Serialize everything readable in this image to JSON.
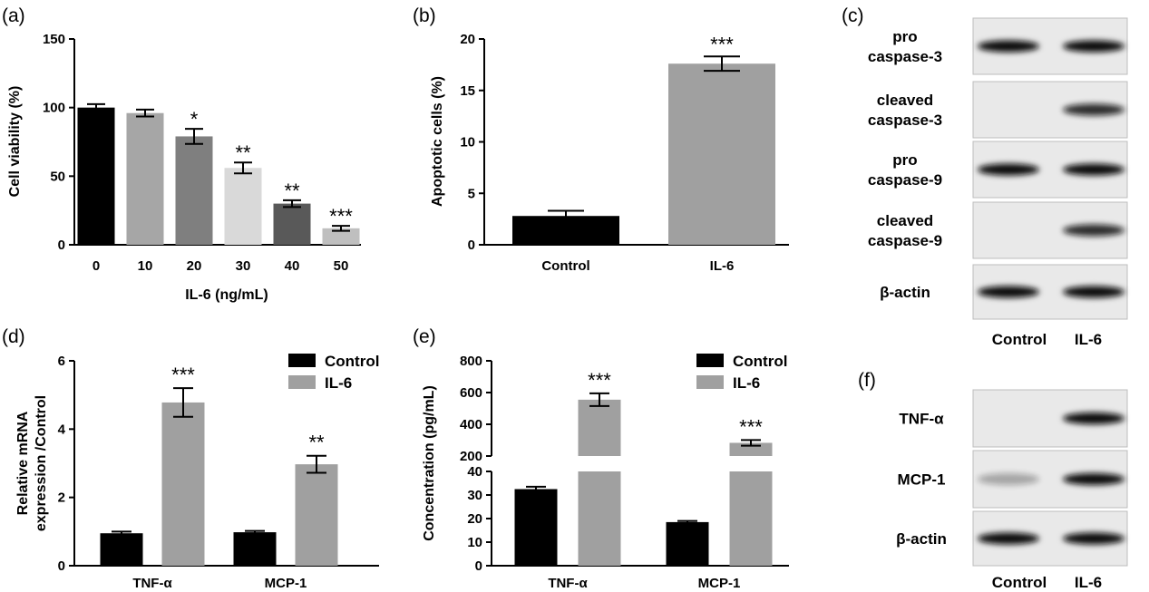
{
  "colors": {
    "black": "#000000",
    "gray_10": "#a6a6a6",
    "gray_20": "#7f7f7f",
    "gray_30": "#d9d9d9",
    "gray_40": "#595959",
    "gray_50": "#bfbfbf",
    "il6_gray": "#a0a0a0"
  },
  "chart_data": [
    {
      "id": "a",
      "panel_label": "(a)",
      "type": "bar",
      "categories": [
        "0",
        "10",
        "20",
        "30",
        "40",
        "50"
      ],
      "values": [
        100,
        96,
        79,
        56,
        30,
        12
      ],
      "errors": [
        2.5,
        2.5,
        5.5,
        4,
        2.5,
        1.8
      ],
      "significance": [
        "",
        "",
        "*",
        "**",
        "**",
        "***"
      ],
      "bar_colors": [
        "#000000",
        "#a6a6a6",
        "#7f7f7f",
        "#d9d9d9",
        "#595959",
        "#bfbfbf"
      ],
      "ylabel": "Cell viability (%)",
      "xlabel": "IL-6 (ng/mL)",
      "ylim": [
        0,
        150
      ],
      "yticks": [
        0,
        50,
        100,
        150
      ]
    },
    {
      "id": "b",
      "panel_label": "(b)",
      "type": "bar",
      "categories": [
        "Control",
        "IL-6"
      ],
      "values": [
        2.8,
        17.6
      ],
      "errors": [
        0.5,
        0.7
      ],
      "significance": [
        "",
        "***"
      ],
      "bar_colors": [
        "#000000",
        "#a0a0a0"
      ],
      "ylabel": "Apoptotic cells (%)",
      "ylim": [
        0,
        20
      ],
      "yticks": [
        0,
        5,
        10,
        15,
        20
      ]
    },
    {
      "id": "d",
      "panel_label": "(d)",
      "type": "bar",
      "categories": [
        "TNF-α",
        "MCP-1"
      ],
      "series": [
        {
          "name": "Control",
          "values": [
            0.95,
            0.98
          ],
          "errors": [
            0.05,
            0.04
          ],
          "significance": [
            "",
            ""
          ]
        },
        {
          "name": "IL-6",
          "values": [
            4.78,
            2.97
          ],
          "errors": [
            0.42,
            0.25
          ],
          "significance": [
            "***",
            "**"
          ]
        }
      ],
      "ylabel": "Relative mRNA expression /Control",
      "ylabel_lines": [
        "Relative mRNA",
        "expression /Control"
      ],
      "ylim": [
        0,
        6
      ],
      "yticks": [
        0,
        2,
        4,
        6
      ],
      "legend_position": "top-right"
    },
    {
      "id": "e",
      "panel_label": "(e)",
      "type": "bar",
      "categories": [
        "TNF-α",
        "MCP-1"
      ],
      "series": [
        {
          "name": "Control",
          "values": [
            32.5,
            18.5
          ],
          "errors": [
            1.0,
            0.5
          ],
          "significance": [
            "",
            ""
          ]
        },
        {
          "name": "IL-6",
          "values": [
            555,
            283
          ],
          "errors": [
            40,
            18
          ],
          "significance": [
            "***",
            "***"
          ]
        }
      ],
      "ylabel": "Concentration (pg/mL)",
      "axis_break": true,
      "ylim_lower": [
        0,
        40
      ],
      "yticks_lower": [
        0,
        10,
        20,
        30,
        40
      ],
      "ylim_upper": [
        200,
        800
      ],
      "yticks_upper": [
        200,
        400,
        600,
        800
      ],
      "legend_position": "top-right"
    }
  ],
  "blot_c": {
    "panel_label": "(c)",
    "rows": [
      {
        "label_lines": [
          "pro",
          "caspase-3"
        ],
        "intensity": [
          1.0,
          1.0
        ]
      },
      {
        "label_lines": [
          "cleaved",
          "caspase-3"
        ],
        "intensity": [
          0.0,
          0.85
        ]
      },
      {
        "label_lines": [
          "pro",
          "caspase-9"
        ],
        "intensity": [
          1.0,
          1.0
        ]
      },
      {
        "label_lines": [
          "cleaved",
          "caspase-9"
        ],
        "intensity": [
          0.0,
          0.85
        ]
      },
      {
        "label_lines": [
          "β-actin"
        ],
        "intensity": [
          1.0,
          1.0
        ]
      }
    ],
    "lanes": [
      "Control",
      "IL-6"
    ]
  },
  "blot_f": {
    "panel_label": "(f)",
    "rows": [
      {
        "label_lines": [
          "TNF-α"
        ],
        "intensity": [
          0.0,
          1.0
        ]
      },
      {
        "label_lines": [
          "MCP-1"
        ],
        "intensity": [
          0.3,
          1.0
        ]
      },
      {
        "label_lines": [
          "β-actin"
        ],
        "intensity": [
          1.0,
          1.0
        ]
      }
    ],
    "lanes": [
      "Control",
      "IL-6"
    ]
  }
}
